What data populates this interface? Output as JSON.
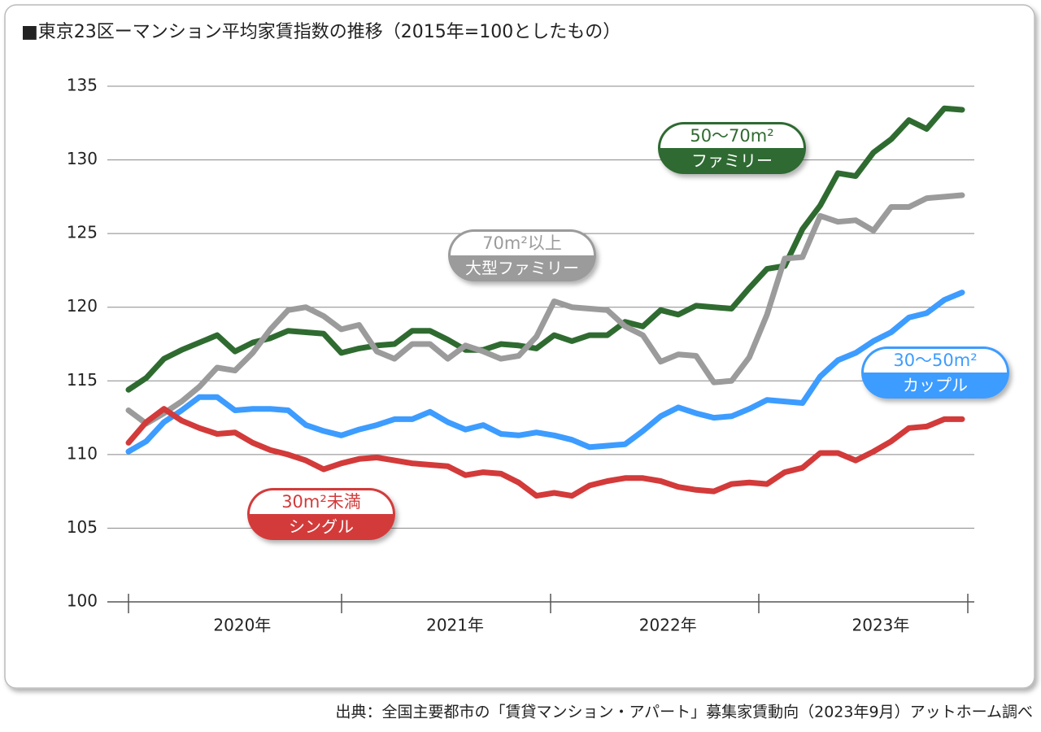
{
  "chart_data": {
    "type": "line",
    "title": "■東京23区ーマンション平均家賃指数の推移（2015年=100としたもの）",
    "source": "出典：全国主要都市の「賃貸マンション・アパート」募集家賃動向（2023年9月）アットホーム調べ",
    "categories": [
      null,
      null,
      null,
      null,
      null,
      null,
      "2020年",
      null,
      null,
      null,
      null,
      null,
      null,
      null,
      null,
      null,
      null,
      null,
      "2021年",
      null,
      null,
      null,
      null,
      null,
      null,
      null,
      null,
      null,
      null,
      null,
      "2022年",
      null,
      null,
      null,
      null,
      null,
      null,
      null,
      null,
      null,
      null,
      null,
      "2023年",
      null,
      null,
      null,
      null,
      null
    ],
    "ylim": [
      100,
      135
    ],
    "yticks": [
      100,
      105,
      110,
      115,
      120,
      125,
      130,
      135
    ],
    "grid": true,
    "series": [
      {
        "name": "50〜70m²",
        "sublabel": "ファミリー",
        "color": "#2f6b30",
        "values": [
          114.4,
          115.2,
          116.5,
          117.1,
          117.6,
          118.1,
          117.0,
          117.6,
          117.9,
          118.4,
          118.3,
          118.2,
          116.9,
          117.2,
          117.4,
          117.5,
          118.4,
          118.4,
          117.8,
          117.1,
          117.1,
          117.5,
          117.4,
          117.2,
          118.1,
          117.7,
          118.1,
          118.1,
          119.0,
          118.7,
          119.8,
          119.5,
          120.1,
          120.0,
          119.9,
          121.3,
          122.6,
          122.8,
          125.3,
          126.9,
          129.1,
          128.9,
          130.5,
          131.4,
          132.7,
          132.1,
          133.5,
          133.4
        ]
      },
      {
        "name": "70m²以上",
        "sublabel": "大型ファミリー",
        "color": "#9b9b9b",
        "values": [
          113.0,
          112.1,
          112.8,
          113.6,
          114.6,
          115.9,
          115.7,
          116.9,
          118.5,
          119.8,
          120.0,
          119.4,
          118.5,
          118.8,
          117.0,
          116.5,
          117.5,
          117.5,
          116.5,
          117.4,
          117.0,
          116.5,
          116.7,
          118.0,
          120.4,
          120.0,
          119.9,
          119.8,
          118.7,
          118.1,
          116.3,
          116.8,
          116.7,
          114.9,
          115.0,
          116.6,
          119.5,
          123.3,
          123.4,
          126.2,
          125.8,
          125.9,
          125.2,
          126.8,
          126.8,
          127.4,
          127.5,
          127.6
        ]
      },
      {
        "name": "30〜50m²",
        "sublabel": "カップル",
        "color": "#3d9cff",
        "values": [
          110.2,
          110.9,
          112.2,
          113.0,
          113.9,
          113.9,
          113.0,
          113.1,
          113.1,
          113.0,
          112.0,
          111.6,
          111.3,
          111.7,
          112.0,
          112.4,
          112.4,
          112.9,
          112.2,
          111.7,
          112.0,
          111.4,
          111.3,
          111.5,
          111.3,
          111.0,
          110.5,
          110.6,
          110.7,
          111.6,
          112.6,
          113.2,
          112.8,
          112.5,
          112.6,
          113.1,
          113.7,
          113.6,
          113.5,
          115.3,
          116.4,
          116.9,
          117.7,
          118.3,
          119.3,
          119.6,
          120.5,
          121.0
        ]
      },
      {
        "name": "30m²未満",
        "sublabel": "シングル",
        "color": "#d33a3a",
        "values": [
          110.8,
          112.2,
          113.1,
          112.3,
          111.8,
          111.4,
          111.5,
          110.8,
          110.3,
          110.0,
          109.6,
          109.0,
          109.4,
          109.7,
          109.8,
          109.6,
          109.4,
          109.3,
          109.2,
          108.6,
          108.8,
          108.7,
          108.1,
          107.2,
          107.4,
          107.2,
          107.9,
          108.2,
          108.4,
          108.4,
          108.2,
          107.8,
          107.6,
          107.5,
          108.0,
          108.1,
          108.0,
          108.8,
          109.1,
          110.1,
          110.1,
          109.6,
          110.2,
          110.9,
          111.8,
          111.9,
          112.4,
          112.4
        ]
      }
    ]
  }
}
